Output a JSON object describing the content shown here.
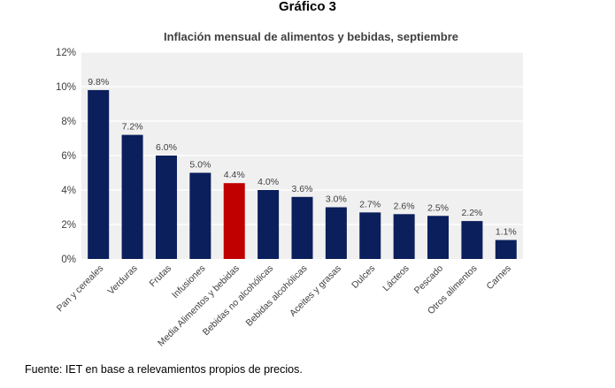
{
  "figure_heading": "Gráfico 3",
  "source_note": "Fuente: IET en base a relevamientos propios de precios.",
  "chart_data": {
    "type": "bar",
    "title": "Inflación mensual de alimentos y bebidas, septiembre",
    "xlabel": "",
    "ylabel": "",
    "ylim": [
      0,
      12
    ],
    "yticks": [
      "0%",
      "2%",
      "4%",
      "6%",
      "8%",
      "10%",
      "12%"
    ],
    "grid": true,
    "categories": [
      "Pan y cereales",
      "Verduras",
      "Frutas",
      "Infusiones",
      "Media Alimentos y bebidas",
      "Bebidas no alcohólicas",
      "Bebidas alcohólicas",
      "Aceites y grasas",
      "Dulces",
      "Lácteos",
      "Pescado",
      "Otros alimentos",
      "Carnes"
    ],
    "values": [
      9.8,
      7.2,
      6.0,
      5.0,
      4.4,
      4.0,
      3.6,
      3.0,
      2.7,
      2.6,
      2.5,
      2.2,
      1.1
    ],
    "data_labels": [
      "9.8%",
      "7.2%",
      "6.0%",
      "5.0%",
      "4.4%",
      "4.0%",
      "3.6%",
      "3.0%",
      "2.7%",
      "2.6%",
      "2.5%",
      "2.2%",
      "1.1%"
    ],
    "colors": {
      "bar": "#0a1f5c",
      "highlight": "#c00000",
      "plot_bg": "#f0f0f0",
      "grid": "#ffffff"
    },
    "highlight_index": 4
  }
}
